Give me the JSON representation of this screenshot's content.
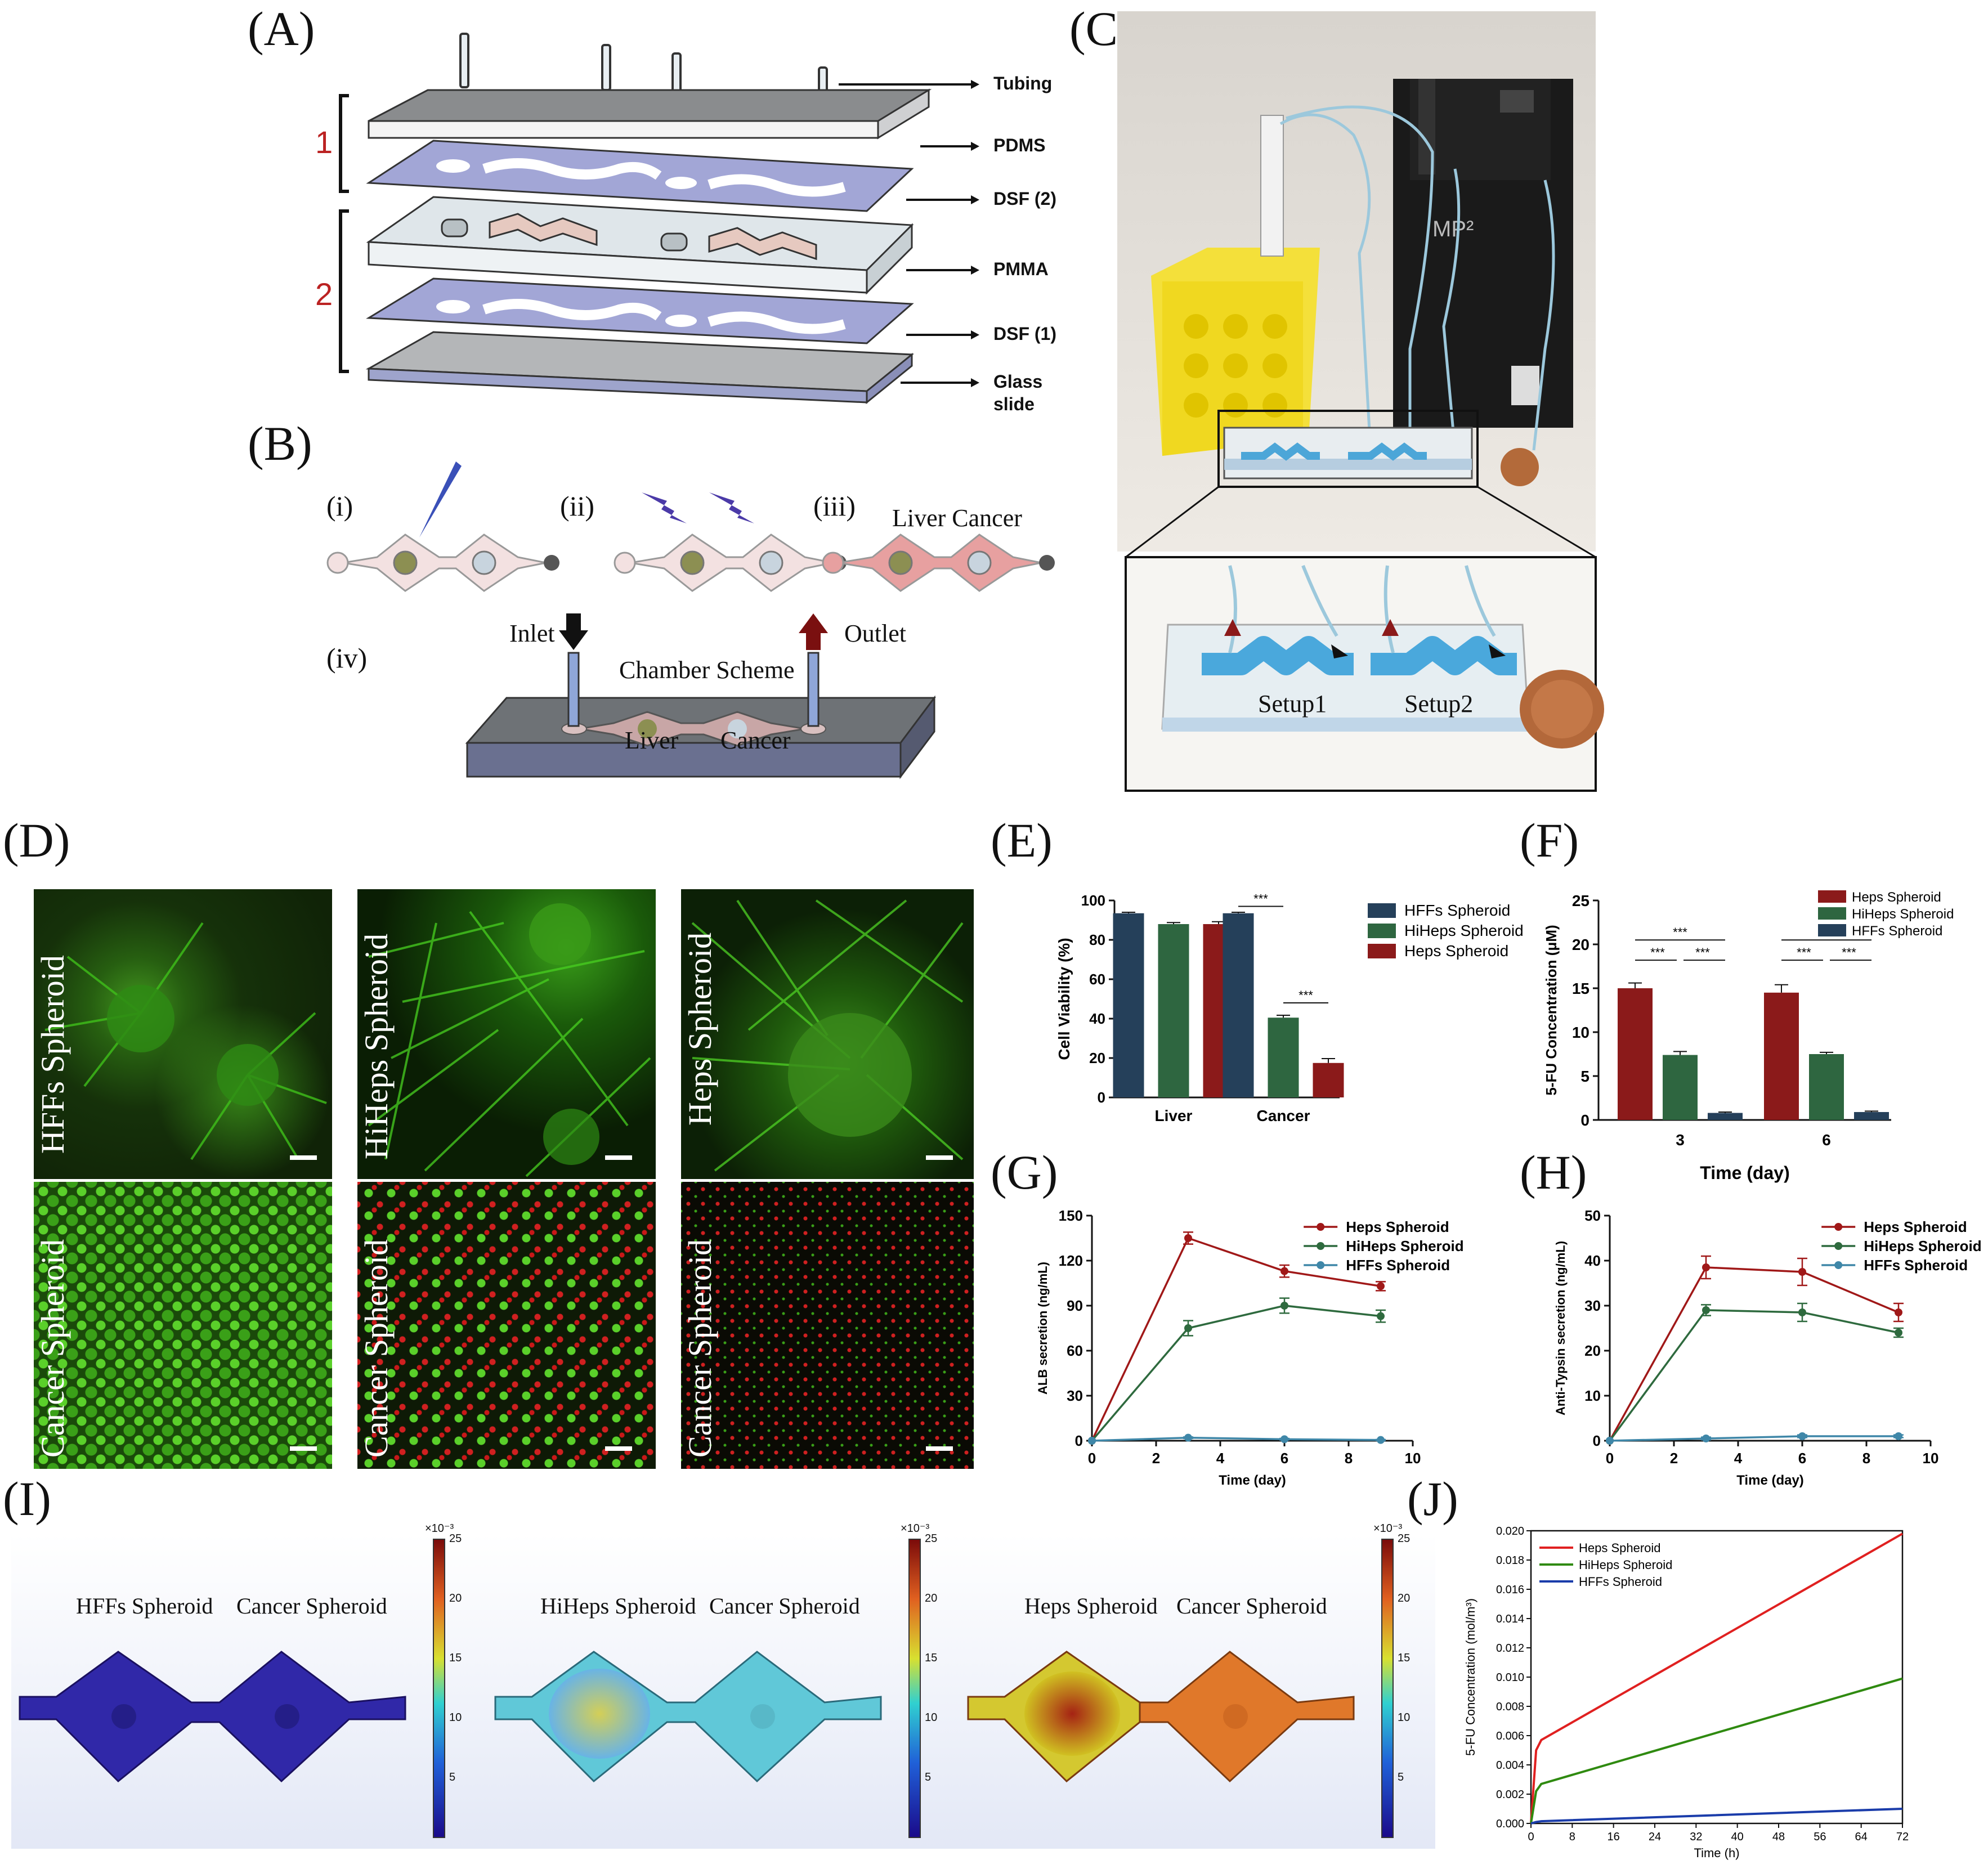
{
  "panels": {
    "A": "(A)",
    "B": "(B)",
    "C": "(C)",
    "D": "(D)",
    "E": "(E)",
    "F": "(F)",
    "G": "(G)",
    "H": "(H)",
    "I": "(I)",
    "J": "(J)"
  },
  "panelA": {
    "layers": [
      "Tubing",
      "PDMS",
      "DSF (2)",
      "PMMA",
      "DSF (1)",
      "Glass",
      "slide"
    ],
    "groups": [
      "1",
      "2"
    ]
  },
  "panelB": {
    "steps": [
      "(i)",
      "(ii)",
      "(iii)",
      "(iv)"
    ],
    "step3_label": "Liver Cancer",
    "inlet": "Inlet",
    "outlet": "Outlet",
    "chamber": "Chamber Scheme",
    "liver": "Liver",
    "cancer": "Cancer"
  },
  "panelC": {
    "device_text": "MP²",
    "setup1": "Setup1",
    "setup2": "Setup2"
  },
  "panelD": {
    "top": [
      "HFFs Spheroid",
      "HiHeps Spheroid",
      "Heps Spheroid"
    ],
    "bottom": [
      "Cancer Spheroid",
      "Cancer Spheroid",
      "Cancer Spheroid"
    ]
  },
  "panelI": {
    "pairs": [
      [
        "HFFs Spheroid",
        "Cancer Spheroid"
      ],
      [
        "HiHeps Spheroid",
        "Cancer Spheroid"
      ],
      [
        "Heps Spheroid",
        "Cancer Spheroid"
      ]
    ],
    "colorbar_exp": "×10⁻³",
    "colorbar_ticks": [
      "25",
      "20",
      "15",
      "10",
      "5"
    ]
  },
  "colors": {
    "hffs_bar": "#25405a",
    "hiheps_bar": "#2e6640",
    "heps_bar": "#8b1a1a",
    "line_heps": "#a01818",
    "line_hiheps": "#2e6a3e",
    "line_hffs": "#3f87a8",
    "j_heps": "#e02020",
    "j_hiheps": "#2f8a10",
    "j_hffs": "#1a3caa"
  },
  "chart_data": [
    {
      "id": "E",
      "type": "bar",
      "ylabel": "Cell Viability (%)",
      "categories": [
        "Liver",
        "Cancer"
      ],
      "series": [
        {
          "name": "HFFs Spheroid",
          "values": [
            93.5,
            93.5
          ],
          "errors": [
            0.5,
            0.5
          ]
        },
        {
          "name": "HiHeps Spheroid",
          "values": [
            88,
            40.5
          ],
          "errors": [
            0.8,
            1.2
          ]
        },
        {
          "name": "Heps Spheroid",
          "values": [
            88,
            17.5
          ],
          "errors": [
            1.2,
            2.2
          ]
        }
      ],
      "ylim": [
        0,
        100
      ],
      "yticks": [
        0,
        20,
        40,
        60,
        80,
        100
      ],
      "significance": [
        "***",
        "***"
      ],
      "legend": "top-right"
    },
    {
      "id": "F",
      "type": "bar",
      "xlabel": "Time (day)",
      "ylabel": "5-FU Concentration (μM)",
      "categories": [
        "3",
        "6"
      ],
      "series": [
        {
          "name": "Heps Spheroid",
          "values": [
            15.0,
            14.5
          ],
          "errors": [
            0.6,
            0.9
          ]
        },
        {
          "name": "HiHeps Spheroid",
          "values": [
            7.4,
            7.5
          ],
          "errors": [
            0.4,
            0.2
          ]
        },
        {
          "name": "HFFs Spheroid",
          "values": [
            0.8,
            0.9
          ],
          "errors": [
            0.1,
            0.1
          ]
        }
      ],
      "ylim": [
        0,
        25
      ],
      "yticks": [
        0,
        5,
        10,
        15,
        20,
        25
      ],
      "significance": [
        "***",
        "***",
        "***",
        "***",
        "***",
        "***"
      ],
      "legend": "top-right"
    },
    {
      "id": "G",
      "type": "line",
      "xlabel": "Time (day)",
      "ylabel": "ALB secretion (ng/mL)",
      "x": [
        0,
        3,
        6,
        9
      ],
      "series": [
        {
          "name": "Heps Spheroid",
          "values": [
            0,
            135,
            113,
            103
          ],
          "errors": [
            0,
            4,
            4,
            3
          ]
        },
        {
          "name": "HiHeps Spheroid",
          "values": [
            0,
            75,
            90,
            83
          ],
          "errors": [
            0,
            5,
            5,
            4
          ]
        },
        {
          "name": "HFFs Spheroid",
          "values": [
            0,
            2,
            1,
            0.5
          ],
          "errors": [
            0,
            0.5,
            0.5,
            0.3
          ]
        }
      ],
      "xlim": [
        0,
        10
      ],
      "ylim": [
        0,
        150
      ],
      "xticks": [
        0,
        2,
        4,
        6,
        8,
        10
      ],
      "yticks": [
        0,
        30,
        60,
        90,
        120,
        150
      ],
      "legend": "top-right"
    },
    {
      "id": "H",
      "type": "line",
      "xlabel": "Time (day)",
      "ylabel": "Anti-Typsin secretion (ng/mL)",
      "x": [
        0,
        3,
        6,
        9
      ],
      "series": [
        {
          "name": "Heps Spheroid",
          "values": [
            0,
            38.5,
            37.5,
            28.5
          ],
          "errors": [
            0,
            2.5,
            3,
            2
          ]
        },
        {
          "name": "HiHeps Spheroid",
          "values": [
            0,
            29,
            28.5,
            24
          ],
          "errors": [
            0,
            1.2,
            2,
            1
          ]
        },
        {
          "name": "HFFs Spheroid",
          "values": [
            0,
            0.5,
            1,
            1
          ],
          "errors": [
            0,
            0.3,
            0.3,
            0.3
          ]
        }
      ],
      "xlim": [
        0,
        10
      ],
      "ylim": [
        0,
        50
      ],
      "xticks": [
        0,
        2,
        4,
        6,
        8,
        10
      ],
      "yticks": [
        0,
        10,
        20,
        30,
        40,
        50
      ],
      "legend": "top-right"
    },
    {
      "id": "J",
      "type": "line",
      "xlabel": "Time (h)",
      "ylabel": "5-FU Concentration (mol/m³)",
      "x": [
        0,
        1,
        2,
        72
      ],
      "series": [
        {
          "name": "Heps Spheroid",
          "values": [
            0,
            0.005,
            0.0057,
            0.0198
          ]
        },
        {
          "name": "HiHeps Spheroid",
          "values": [
            0,
            0.0022,
            0.0027,
            0.0099
          ]
        },
        {
          "name": "HFFs Spheroid",
          "values": [
            0,
            0.0001,
            0.00015,
            0.001
          ]
        }
      ],
      "xlim": [
        0,
        72
      ],
      "ylim": [
        0,
        0.02
      ],
      "xticks": [
        0,
        8,
        16,
        24,
        32,
        40,
        48,
        56,
        64,
        72
      ],
      "yticks": [
        0.0,
        0.002,
        0.004,
        0.006,
        0.008,
        0.01,
        0.012,
        0.014,
        0.016,
        0.018,
        0.02
      ],
      "legend": "top-left"
    }
  ]
}
